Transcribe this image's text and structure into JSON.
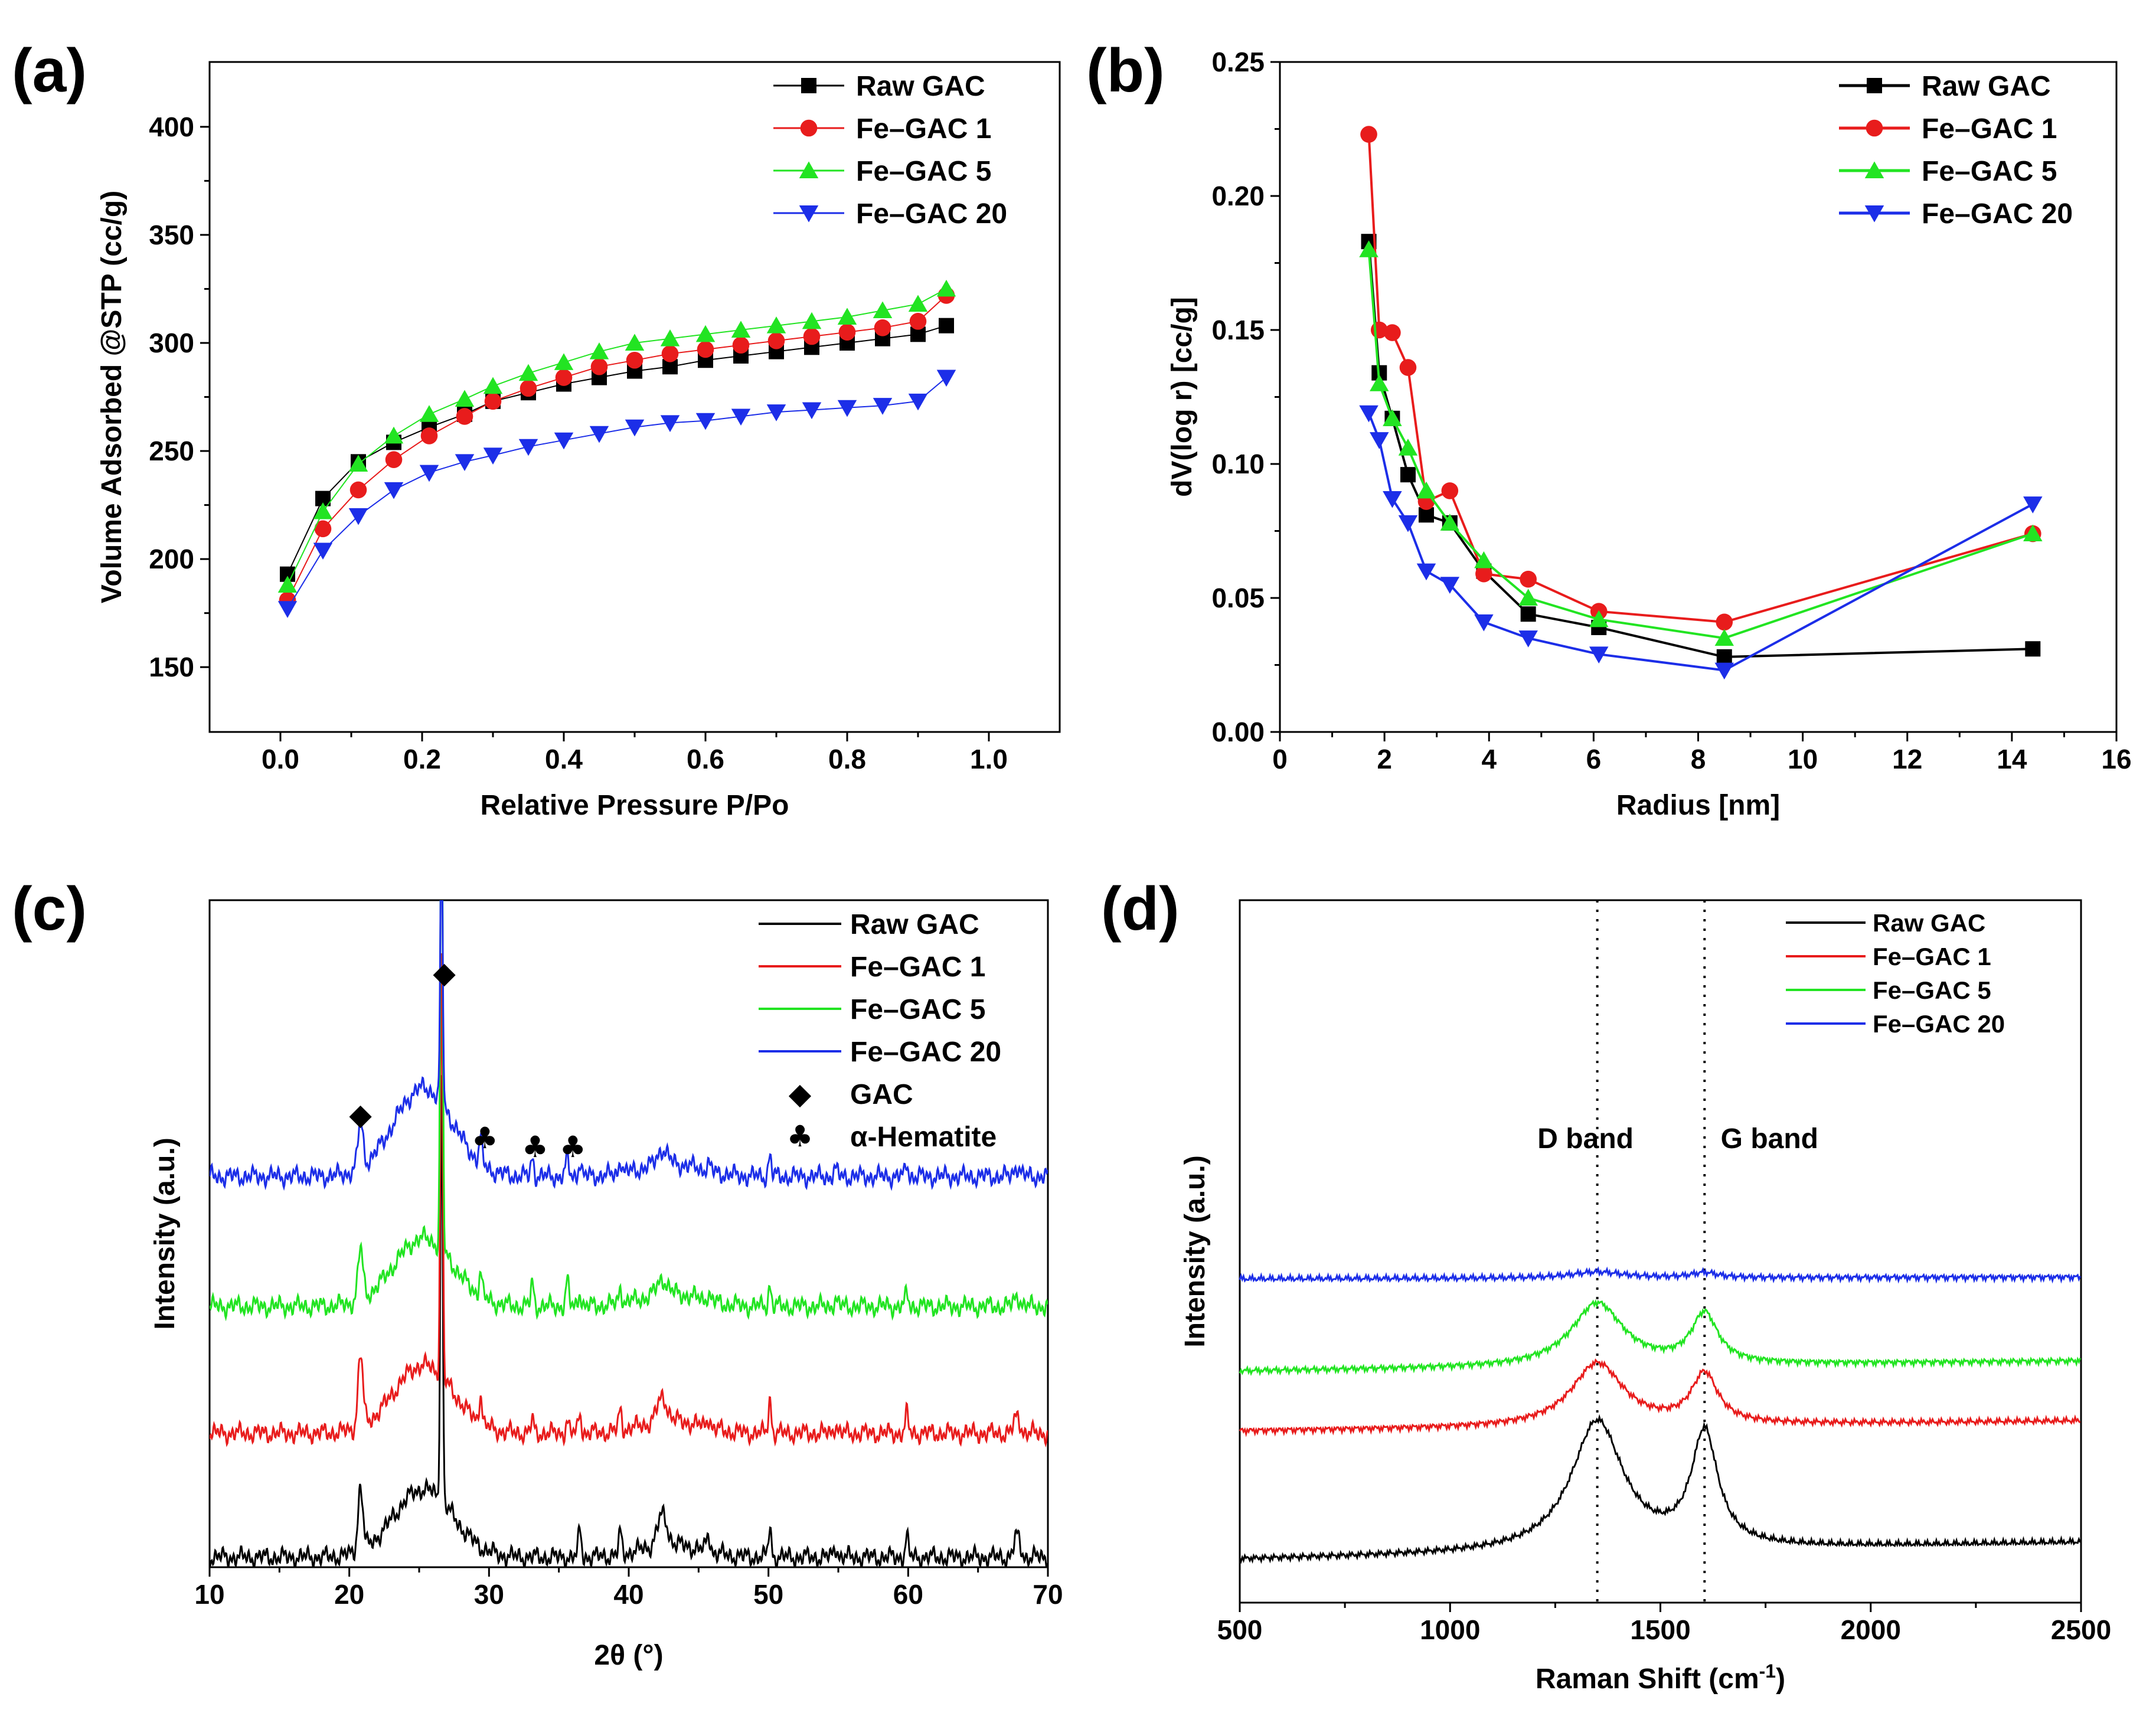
{
  "colors": {
    "Raw GAC": "#000000",
    "Fe–GAC 1": "#e81c1c",
    "Fe–GAC 5": "#22e422",
    "Fe–GAC 20": "#1c2ee8"
  },
  "chart_data": [
    {
      "panel": "(a)",
      "type": "line",
      "xlabel": "Relative Pressure P/Po",
      "ylabel": "Volume Adsorbed @STP (cc/g)",
      "xlim": [
        -0.1,
        1.1
      ],
      "ylim": [
        120,
        430
      ],
      "xticks": [
        0.0,
        0.2,
        0.4,
        0.6,
        0.8,
        1.0
      ],
      "xtick_labels": [
        "0.0",
        "0.2",
        "0.4",
        "0.6",
        "0.8",
        "1.0"
      ],
      "yticks": [
        150,
        200,
        250,
        300,
        350,
        400
      ],
      "ytick_labels": [
        "150",
        "200",
        "250",
        "300",
        "350",
        "400"
      ],
      "legend": "top-right",
      "series": [
        {
          "name": "Raw GAC",
          "marker": "square",
          "x": [
            0.01,
            0.06,
            0.11,
            0.16,
            0.21,
            0.26,
            0.3,
            0.35,
            0.4,
            0.45,
            0.5,
            0.55,
            0.6,
            0.65,
            0.7,
            0.75,
            0.8,
            0.85,
            0.9,
            0.94
          ],
          "y": [
            193,
            228,
            245,
            254,
            261,
            267,
            273,
            277,
            281,
            284,
            287,
            289,
            292,
            294,
            296,
            298,
            300,
            302,
            304,
            308
          ]
        },
        {
          "name": "Fe–GAC 1",
          "marker": "circle",
          "x": [
            0.01,
            0.06,
            0.11,
            0.16,
            0.21,
            0.26,
            0.3,
            0.35,
            0.4,
            0.45,
            0.5,
            0.55,
            0.6,
            0.65,
            0.7,
            0.75,
            0.8,
            0.85,
            0.9,
            0.94
          ],
          "y": [
            181,
            214,
            232,
            246,
            257,
            266,
            273,
            279,
            284,
            289,
            292,
            295,
            297,
            299,
            301,
            303,
            305,
            307,
            310,
            322
          ]
        },
        {
          "name": "Fe–GAC 5",
          "marker": "triangle-up",
          "x": [
            0.01,
            0.06,
            0.11,
            0.16,
            0.21,
            0.26,
            0.3,
            0.35,
            0.4,
            0.45,
            0.5,
            0.55,
            0.6,
            0.65,
            0.7,
            0.75,
            0.8,
            0.85,
            0.9,
            0.94
          ],
          "y": [
            188,
            222,
            244,
            257,
            267,
            274,
            280,
            286,
            291,
            296,
            300,
            302,
            304,
            306,
            308,
            310,
            312,
            315,
            318,
            325
          ]
        },
        {
          "name": "Fe–GAC 20",
          "marker": "triangle-down",
          "x": [
            0.01,
            0.06,
            0.11,
            0.16,
            0.21,
            0.26,
            0.3,
            0.35,
            0.4,
            0.45,
            0.5,
            0.55,
            0.6,
            0.65,
            0.7,
            0.75,
            0.8,
            0.85,
            0.9,
            0.94
          ],
          "y": [
            177,
            204,
            220,
            232,
            240,
            245,
            248,
            252,
            255,
            258,
            261,
            263,
            264,
            266,
            268,
            269,
            270,
            271,
            273,
            284
          ]
        }
      ]
    },
    {
      "panel": "(b)",
      "type": "line",
      "xlabel": "Radius [nm]",
      "ylabel": "dV(log r) [cc/g]",
      "xlim": [
        0,
        16
      ],
      "ylim": [
        0,
        0.25
      ],
      "xticks": [
        0,
        2,
        4,
        6,
        8,
        10,
        12,
        14,
        16
      ],
      "xtick_labels": [
        "0",
        "2",
        "4",
        "6",
        "8",
        "10",
        "12",
        "14",
        "16"
      ],
      "yticks": [
        0,
        0.05,
        0.1,
        0.15,
        0.2,
        0.25
      ],
      "ytick_labels": [
        "0.00",
        "0.05",
        "0.10",
        "0.15",
        "0.20",
        "0.25"
      ],
      "legend": "top-right",
      "series": [
        {
          "name": "Raw GAC",
          "marker": "square",
          "x": [
            1.7,
            1.9,
            2.15,
            2.45,
            2.8,
            3.25,
            3.9,
            4.75,
            6.1,
            8.5,
            14.4
          ],
          "y": [
            0.183,
            0.134,
            0.117,
            0.096,
            0.081,
            0.078,
            0.06,
            0.044,
            0.039,
            0.028,
            0.031
          ]
        },
        {
          "name": "Fe–GAC 1",
          "marker": "circle",
          "x": [
            1.7,
            1.9,
            2.15,
            2.45,
            2.8,
            3.25,
            3.9,
            4.75,
            6.1,
            8.5,
            14.4
          ],
          "y": [
            0.223,
            0.15,
            0.149,
            0.136,
            0.086,
            0.09,
            0.059,
            0.057,
            0.045,
            0.041,
            0.074
          ]
        },
        {
          "name": "Fe–GAC 5",
          "marker": "triangle-up",
          "x": [
            1.7,
            1.9,
            2.15,
            2.45,
            2.8,
            3.25,
            3.9,
            4.75,
            6.1,
            8.5,
            14.4
          ],
          "y": [
            0.18,
            0.13,
            0.117,
            0.106,
            0.09,
            0.078,
            0.064,
            0.05,
            0.042,
            0.035,
            0.074
          ]
        },
        {
          "name": "Fe–GAC 20",
          "marker": "triangle-down",
          "x": [
            1.7,
            1.9,
            2.15,
            2.45,
            2.8,
            3.25,
            3.9,
            4.75,
            6.1,
            8.5,
            14.4
          ],
          "y": [
            0.119,
            0.109,
            0.087,
            0.078,
            0.06,
            0.055,
            0.041,
            0.035,
            0.029,
            0.023,
            0.085
          ]
        }
      ]
    },
    {
      "panel": "(c)",
      "type": "line",
      "xlabel": "2θ (°)",
      "ylabel": "Intensity (a.u.)",
      "xlim": [
        10,
        70
      ],
      "xticks": [
        10,
        20,
        30,
        40,
        50,
        60,
        70
      ],
      "xtick_labels": [
        "10",
        "20",
        "30",
        "40",
        "50",
        "60",
        "70"
      ],
      "legend": "top-right",
      "legend_symbols": [
        {
          "symbol": "◆",
          "label": "GAC"
        },
        {
          "symbol": "♣",
          "label": "α-Hematite"
        }
      ],
      "series_offsets": {
        "Raw GAC": 0,
        "Fe–GAC 1": 1,
        "Fe–GAC 5": 2,
        "Fe–GAC 20": 3
      },
      "series": [
        {
          "name": "Raw GAC"
        },
        {
          "name": "Fe–GAC 1"
        },
        {
          "name": "Fe–GAC 5"
        },
        {
          "name": "Fe–GAC 20"
        }
      ],
      "peaks": [
        {
          "pos": 20.8,
          "width": 0.25,
          "amp": [
            3.0,
            3.4,
            2.4,
            2.2
          ]
        },
        {
          "pos": 26.6,
          "width": 0.12,
          "amp": [
            20.0,
            20.0,
            24.0,
            13.0
          ]
        },
        {
          "pos": 29.4,
          "width": 0.15,
          "amp": [
            0.0,
            1.4,
            1.2,
            1.2
          ]
        },
        {
          "pos": 33.1,
          "width": 0.15,
          "amp": [
            0.0,
            0.6,
            1.1,
            0.9
          ]
        },
        {
          "pos": 35.6,
          "width": 0.15,
          "amp": [
            0.0,
            0.6,
            1.2,
            0.9
          ]
        },
        {
          "pos": 36.5,
          "width": 0.15,
          "amp": [
            1.3,
            1.0,
            0.7,
            0.7
          ]
        },
        {
          "pos": 39.4,
          "width": 0.15,
          "amp": [
            1.0,
            1.0,
            0.8,
            0.7
          ]
        },
        {
          "pos": 42.4,
          "width": 0.5,
          "amp": [
            1.4,
            1.1,
            0.7,
            0.7
          ]
        },
        {
          "pos": 45.7,
          "width": 0.2,
          "amp": [
            0.8,
            0.5,
            0.3,
            0.3
          ]
        },
        {
          "pos": 50.1,
          "width": 0.15,
          "amp": [
            1.4,
            1.6,
            1.0,
            1.0
          ]
        },
        {
          "pos": 54.8,
          "width": 0.2,
          "amp": [
            0.5,
            0.4,
            0.3,
            0.3
          ]
        },
        {
          "pos": 59.9,
          "width": 0.15,
          "amp": [
            1.0,
            0.9,
            0.6,
            0.6
          ]
        },
        {
          "pos": 67.8,
          "width": 0.3,
          "amp": [
            1.0,
            0.8,
            0.5,
            0.5
          ]
        }
      ],
      "marker_positions": [
        {
          "symbol": "◆",
          "x": 20.8
        },
        {
          "symbol": "◆",
          "x": 26.8
        },
        {
          "symbol": "♣",
          "x": 29.7
        },
        {
          "symbol": "♣",
          "x": 33.3
        },
        {
          "symbol": "♣",
          "x": 36.0
        }
      ]
    },
    {
      "panel": "(d)",
      "type": "line",
      "xlabel": "Raman Shift (cm-1)",
      "ylabel": "Intensity (a.u.)",
      "xlim": [
        500,
        2500
      ],
      "xticks": [
        500,
        1000,
        1500,
        2000,
        2500
      ],
      "xtick_labels": [
        "500",
        "1000",
        "1500",
        "2000",
        "2500"
      ],
      "legend": "top-right",
      "annotations": [
        "D band",
        "G band"
      ],
      "reference_lines": [
        1350,
        1605
      ],
      "series_offsets": {
        "Raw GAC": 0.0,
        "Fe–GAC 1": 3.75,
        "Fe–GAC 5": 5.5,
        "Fe–GAC 20": 8.2
      },
      "series": [
        {
          "name": "Raw GAC",
          "D_amp": 3.8,
          "G_amp": 3.3,
          "slope": 0.5
        },
        {
          "name": "Fe–GAC 1",
          "D_amp": 1.85,
          "G_amp": 1.45,
          "slope": 0.3
        },
        {
          "name": "Fe–GAC 5",
          "D_amp": 1.85,
          "G_amp": 1.45,
          "slope": 0.3
        },
        {
          "name": "Fe–GAC 20",
          "D_amp": 0.18,
          "G_amp": 0.15,
          "slope": 0.05
        }
      ]
    }
  ]
}
